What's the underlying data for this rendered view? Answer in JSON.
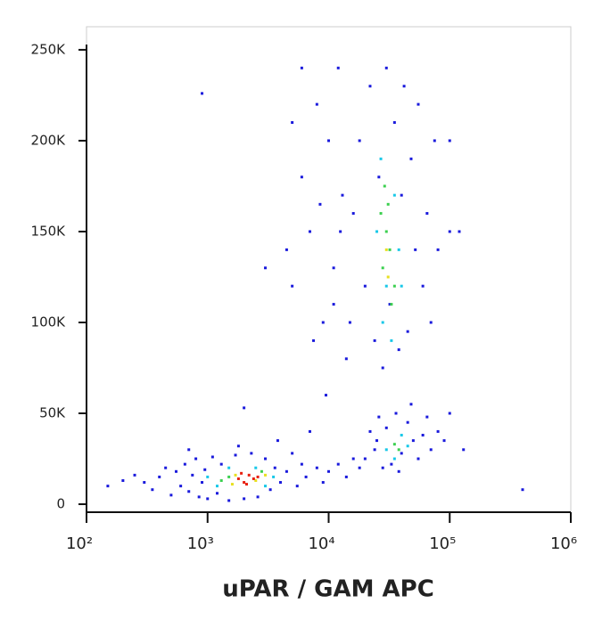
{
  "chart_data": {
    "type": "scatter",
    "x_label": "uPAR / GAM APC",
    "xscale": "log",
    "xlim": [
      100,
      1000000
    ],
    "ylim": [
      -4400,
      262700
    ],
    "xticks": [
      {
        "value": 100,
        "label": "10²"
      },
      {
        "value": 1000,
        "label": "10³"
      },
      {
        "value": 10000,
        "label": "10⁴"
      },
      {
        "value": 100000,
        "label": "10⁵"
      },
      {
        "value": 1000000,
        "label": "10⁶"
      }
    ],
    "yticks": [
      0,
      {
        "value": 50000,
        "label": "50K"
      },
      {
        "value": 100000,
        "label": "100K"
      },
      {
        "value": 150000,
        "label": "150K"
      },
      {
        "value": 200000,
        "label": "200K"
      },
      {
        "value": 250000,
        "label": "250K"
      }
    ],
    "series": [
      {
        "color": "#1a1adc",
        "x": [
          300,
          350,
          400,
          450,
          500,
          550,
          600,
          650,
          700,
          750,
          800,
          850,
          900,
          950,
          1000,
          1100,
          1200,
          1300,
          1500,
          1700,
          2000,
          2300,
          2600,
          3000,
          3300,
          3600,
          4000,
          4500,
          5000,
          5500,
          6000,
          150,
          200,
          250,
          700,
          1800,
          3800,
          6500,
          7000,
          8000,
          9000,
          10000,
          12000,
          14000,
          16000,
          18000,
          20000,
          22000,
          24000,
          26000,
          28000,
          30000,
          33000,
          36000,
          40000,
          45000,
          50000,
          55000,
          60000,
          65000,
          70000,
          80000,
          90000,
          25000,
          38000,
          48000,
          15000,
          16000,
          18000,
          20000,
          22000,
          24000,
          26000,
          28000,
          30000,
          32000,
          35000,
          38000,
          40000,
          42000,
          45000,
          48000,
          52000,
          55000,
          60000,
          65000,
          70000,
          75000,
          80000,
          100000,
          120000,
          100000,
          5000,
          6000,
          7000,
          8000,
          9000,
          10000,
          11000,
          12000,
          13000,
          7500,
          9500,
          6000,
          14000,
          4500,
          11000,
          3000,
          900,
          2000,
          5000,
          100000,
          130000,
          400000,
          8500,
          12500
        ],
        "values": [
          12000,
          8000,
          15000,
          20000,
          5000,
          18000,
          10000,
          22000,
          7000,
          16000,
          25000,
          4000,
          12000,
          19000,
          3000,
          26000,
          6000,
          22000,
          2000,
          27000,
          3000,
          28000,
          4000,
          25000,
          8000,
          20000,
          12000,
          18000,
          28000,
          10000,
          22000,
          10000,
          13000,
          16000,
          30000,
          32000,
          35000,
          15000,
          40000,
          20000,
          12000,
          18000,
          22000,
          15000,
          25000,
          20000,
          25000,
          40000,
          30000,
          48000,
          20000,
          42000,
          22000,
          50000,
          28000,
          45000,
          35000,
          25000,
          38000,
          48000,
          30000,
          40000,
          35000,
          35000,
          18000,
          55000,
          100000,
          160000,
          200000,
          120000,
          230000,
          90000,
          180000,
          75000,
          240000,
          110000,
          210000,
          85000,
          170000,
          230000,
          95000,
          190000,
          140000,
          220000,
          120000,
          160000,
          100000,
          200000,
          140000,
          150000,
          150000,
          200000,
          120000,
          180000,
          150000,
          220000,
          100000,
          200000,
          130000,
          240000,
          170000,
          90000,
          60000,
          240000,
          80000,
          140000,
          110000,
          130000,
          226000,
          53000,
          210000,
          50000,
          30000,
          8000,
          165000,
          150000
        ]
      },
      {
        "color": "#18c8e8",
        "x": [
          1200,
          1500,
          2500,
          3000,
          1000,
          3500,
          25000,
          30000,
          35000,
          28000,
          38000,
          27000,
          33000,
          40000,
          30000,
          40000,
          35000,
          45000
        ],
        "values": [
          10000,
          20000,
          20000,
          10000,
          15000,
          15000,
          150000,
          120000,
          170000,
          100000,
          140000,
          190000,
          90000,
          120000,
          30000,
          38000,
          25000,
          32000
        ]
      },
      {
        "color": "#3cd050",
        "x": [
          28000,
          30000,
          32000,
          27000,
          35000,
          29000,
          33000,
          31000,
          35000,
          38000,
          1500,
          2800,
          1300
        ],
        "values": [
          130000,
          150000,
          140000,
          160000,
          120000,
          175000,
          110000,
          165000,
          33000,
          30000,
          15000,
          18000,
          13000
        ]
      },
      {
        "color": "#e8e020",
        "x": [
          1700,
          2500,
          1600,
          3000,
          30000,
          31000
        ],
        "values": [
          16000,
          13000,
          11000,
          16000,
          140000,
          125000
        ]
      },
      {
        "color": "#e82010",
        "x": [
          1800,
          2000,
          2200,
          2400,
          1900,
          2600,
          2100
        ],
        "values": [
          14000,
          12000,
          16000,
          14000,
          17000,
          15000,
          11000
        ]
      }
    ]
  }
}
